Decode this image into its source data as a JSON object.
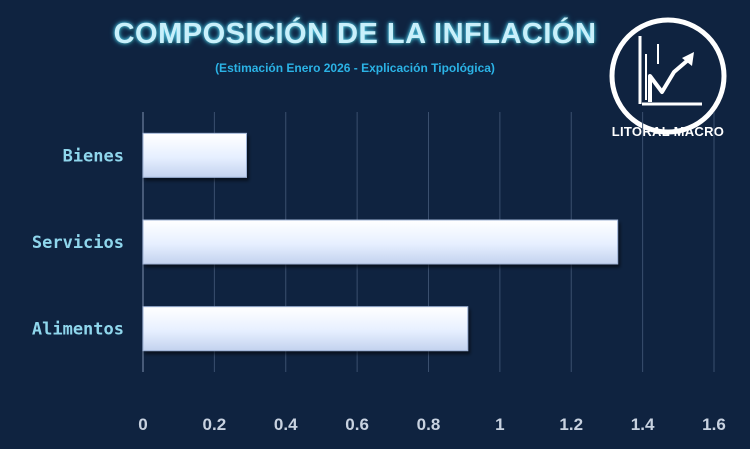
{
  "chart_data": {
    "type": "bar",
    "orientation": "horizontal",
    "title": "COMPOSICIÓN DE LA INFLACIÓN",
    "subtitle": "(Estimación Enero 2026 - Explicación Tipológica)",
    "categories": [
      "Bienes",
      "Servicios",
      "Alimentos"
    ],
    "values": [
      0.29,
      1.33,
      0.91
    ],
    "xlim": [
      0,
      1.6
    ],
    "xticks": [
      "0",
      "0.2",
      "0.4",
      "0.6",
      "0.8",
      "1",
      "1.2",
      "1.4",
      "1.6"
    ],
    "grid": true,
    "xlabel": "",
    "ylabel": ""
  },
  "brand": {
    "name": "LITORAL MACRO",
    "logo_icon": "litoral-macro-logo-icon"
  },
  "colors": {
    "background": "#0f2340",
    "bar_fill": "#e6efff",
    "grid": "#3a4f6e",
    "title": "#c9f0fb",
    "subtitle": "#2bb3e6",
    "category_label": "#8fd6ec",
    "tick_label": "#c8d2e0"
  }
}
